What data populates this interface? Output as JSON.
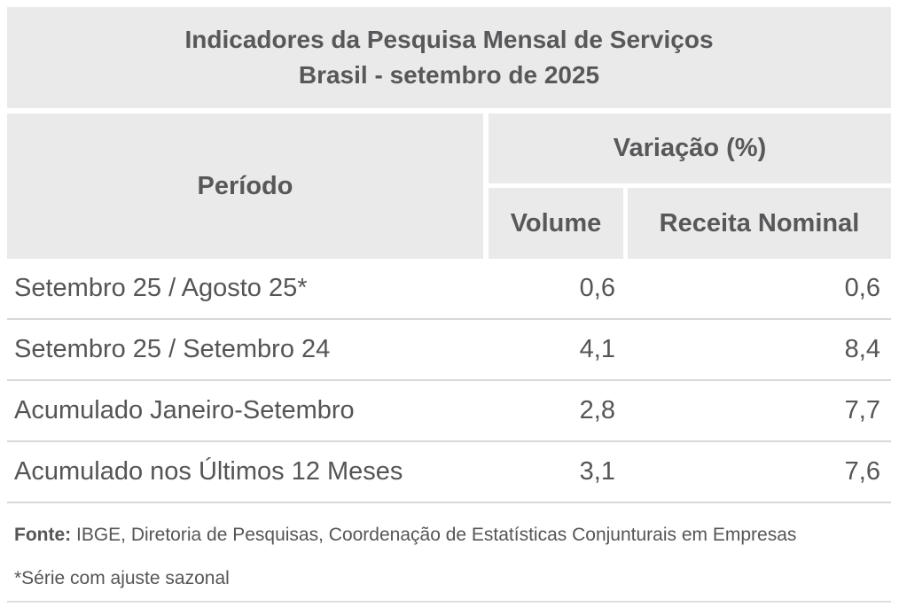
{
  "title": {
    "line1": "Indicadores da Pesquisa Mensal de Serviços",
    "line2": "Brasil - setembro de 2025"
  },
  "table": {
    "period_header": "Período",
    "variation_header": "Variação (%)",
    "volume_header": "Volume",
    "receita_header": "Receita Nominal",
    "rows": [
      {
        "period": "Setembro 25 / Agosto 25*",
        "volume": "0,6",
        "receita": "0,6"
      },
      {
        "period": "Setembro 25 / Setembro 24",
        "volume": "4,1",
        "receita": "8,4"
      },
      {
        "period": "Acumulado Janeiro-Setembro",
        "volume": "2,8",
        "receita": "7,7"
      },
      {
        "period": "Acumulado nos Últimos 12 Meses",
        "volume": "3,1",
        "receita": "7,6"
      }
    ]
  },
  "footer": {
    "source_label": "Fonte:",
    "source_text": " IBGE, Diretoria de Pesquisas, Coordenação de Estatísticas Conjunturais em Empresas",
    "note": "*Série com ajuste sazonal"
  },
  "colors": {
    "header_bg": "#eaeaea",
    "heading_text": "#58585a",
    "body_text": "#555557",
    "row_separator": "#d8d8d8"
  },
  "chart_data": {
    "type": "table",
    "title": "Indicadores da Pesquisa Mensal de Serviços — Brasil - setembro de 2025",
    "column_groups": [
      {
        "label": "Variação (%)",
        "columns": [
          "Volume",
          "Receita Nominal"
        ]
      }
    ],
    "columns": [
      "Período",
      "Volume",
      "Receita Nominal"
    ],
    "rows": [
      [
        "Setembro 25 / Agosto 25*",
        0.6,
        0.6
      ],
      [
        "Setembro 25 / Setembro 24",
        4.1,
        8.4
      ],
      [
        "Acumulado Janeiro-Setembro",
        2.8,
        7.7
      ],
      [
        "Acumulado nos Últimos 12 Meses",
        3.1,
        7.6
      ]
    ],
    "source": "IBGE, Diretoria de Pesquisas, Coordenação de Estatísticas Conjunturais em Empresas",
    "note": "*Série com ajuste sazonal"
  }
}
